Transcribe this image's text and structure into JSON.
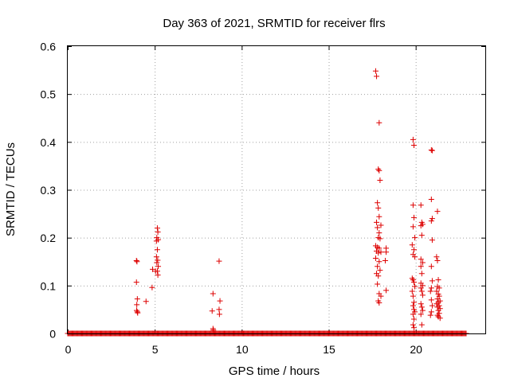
{
  "chart_data": {
    "type": "scatter",
    "title": "Day 363 of 2021, SRMTID for receiver flrs",
    "xlabel": "GPS time / hours",
    "ylabel": "SRMTID / TECUs",
    "xlim": [
      0,
      24
    ],
    "ylim": [
      0,
      0.6
    ],
    "xticks": [
      0,
      5,
      10,
      15,
      20
    ],
    "xtick_labels": [
      "0",
      "5",
      "10",
      "15",
      "20"
    ],
    "yticks": [
      0,
      0.1,
      0.2,
      0.3,
      0.4,
      0.5,
      0.6
    ],
    "ytick_labels": [
      "0",
      "0.1",
      "0.2",
      "0.3",
      "0.4",
      "0.5",
      "0.6"
    ],
    "grid": true,
    "marker": "+",
    "series": [
      {
        "name": "flrs",
        "color": "#dd0000",
        "baseline": {
          "y": 0,
          "x_from": 0,
          "x_to": 22.9,
          "step": 0.05
        },
        "points": [
          [
            3.95,
            0.152
          ],
          [
            3.98,
            0.15
          ],
          [
            3.95,
            0.107
          ],
          [
            4.0,
            0.072
          ],
          [
            3.97,
            0.06
          ],
          [
            4.0,
            0.045
          ],
          [
            3.96,
            0.048
          ],
          [
            4.02,
            0.043
          ],
          [
            4.5,
            0.067
          ],
          [
            4.85,
            0.096
          ],
          [
            4.88,
            0.134
          ],
          [
            5.05,
            0.13
          ],
          [
            5.15,
            0.22
          ],
          [
            5.18,
            0.212
          ],
          [
            5.12,
            0.2
          ],
          [
            5.2,
            0.196
          ],
          [
            5.1,
            0.193
          ],
          [
            5.15,
            0.175
          ],
          [
            5.1,
            0.16
          ],
          [
            5.17,
            0.153
          ],
          [
            5.12,
            0.148
          ],
          [
            5.2,
            0.14
          ],
          [
            5.15,
            0.13
          ],
          [
            5.18,
            0.122
          ],
          [
            8.35,
            0.083
          ],
          [
            8.3,
            0.047
          ],
          [
            8.35,
            0.01
          ],
          [
            8.37,
            0.007
          ],
          [
            8.7,
            0.151
          ],
          [
            8.75,
            0.068
          ],
          [
            8.7,
            0.05
          ],
          [
            8.72,
            0.04
          ],
          [
            17.7,
            0.548
          ],
          [
            17.75,
            0.537
          ],
          [
            17.9,
            0.44
          ],
          [
            17.85,
            0.343
          ],
          [
            17.9,
            0.34
          ],
          [
            17.95,
            0.32
          ],
          [
            17.8,
            0.273
          ],
          [
            17.85,
            0.262
          ],
          [
            17.9,
            0.244
          ],
          [
            17.75,
            0.232
          ],
          [
            17.8,
            0.221
          ],
          [
            18.0,
            0.226
          ],
          [
            17.9,
            0.21
          ],
          [
            17.85,
            0.2
          ],
          [
            17.95,
            0.198
          ],
          [
            17.7,
            0.183
          ],
          [
            17.8,
            0.18
          ],
          [
            17.9,
            0.178
          ],
          [
            17.75,
            0.172
          ],
          [
            17.85,
            0.168
          ],
          [
            18.0,
            0.17
          ],
          [
            17.7,
            0.157
          ],
          [
            17.9,
            0.15
          ],
          [
            17.8,
            0.14
          ],
          [
            17.95,
            0.132
          ],
          [
            17.75,
            0.125
          ],
          [
            17.85,
            0.12
          ],
          [
            17.8,
            0.103
          ],
          [
            17.9,
            0.083
          ],
          [
            18.0,
            0.078
          ],
          [
            17.85,
            0.068
          ],
          [
            17.9,
            0.064
          ],
          [
            18.3,
            0.178
          ],
          [
            18.3,
            0.17
          ],
          [
            18.25,
            0.152
          ],
          [
            18.3,
            0.09
          ],
          [
            19.85,
            0.405
          ],
          [
            19.9,
            0.393
          ],
          [
            19.85,
            0.268
          ],
          [
            19.9,
            0.242
          ],
          [
            19.85,
            0.223
          ],
          [
            19.95,
            0.2
          ],
          [
            19.8,
            0.185
          ],
          [
            19.9,
            0.175
          ],
          [
            19.85,
            0.165
          ],
          [
            19.95,
            0.16
          ],
          [
            19.8,
            0.115
          ],
          [
            19.85,
            0.112
          ],
          [
            19.9,
            0.107
          ],
          [
            19.95,
            0.098
          ],
          [
            19.8,
            0.088
          ],
          [
            19.85,
            0.078
          ],
          [
            19.9,
            0.065
          ],
          [
            19.85,
            0.058
          ],
          [
            19.9,
            0.05
          ],
          [
            19.95,
            0.045
          ],
          [
            19.85,
            0.04
          ],
          [
            19.9,
            0.03
          ],
          [
            19.85,
            0.018
          ],
          [
            19.9,
            0.012
          ],
          [
            20.3,
            0.268
          ],
          [
            20.35,
            0.232
          ],
          [
            20.4,
            0.228
          ],
          [
            20.3,
            0.225
          ],
          [
            20.35,
            0.205
          ],
          [
            20.3,
            0.155
          ],
          [
            20.4,
            0.148
          ],
          [
            20.3,
            0.14
          ],
          [
            20.35,
            0.125
          ],
          [
            20.3,
            0.105
          ],
          [
            20.4,
            0.1
          ],
          [
            20.3,
            0.095
          ],
          [
            20.35,
            0.088
          ],
          [
            20.4,
            0.08
          ],
          [
            20.3,
            0.062
          ],
          [
            20.35,
            0.055
          ],
          [
            20.4,
            0.048
          ],
          [
            20.3,
            0.04
          ],
          [
            20.35,
            0.018
          ],
          [
            20.9,
            0.383
          ],
          [
            20.95,
            0.382
          ],
          [
            20.9,
            0.28
          ],
          [
            20.95,
            0.24
          ],
          [
            20.9,
            0.235
          ],
          [
            20.95,
            0.195
          ],
          [
            20.9,
            0.14
          ],
          [
            20.95,
            0.11
          ],
          [
            20.9,
            0.095
          ],
          [
            20.85,
            0.088
          ],
          [
            20.9,
            0.07
          ],
          [
            20.95,
            0.058
          ],
          [
            20.9,
            0.045
          ],
          [
            20.85,
            0.038
          ],
          [
            21.25,
            0.255
          ],
          [
            21.2,
            0.16
          ],
          [
            21.25,
            0.152
          ],
          [
            21.3,
            0.112
          ],
          [
            21.25,
            0.098
          ],
          [
            21.35,
            0.095
          ],
          [
            21.2,
            0.088
          ],
          [
            21.3,
            0.082
          ],
          [
            21.35,
            0.078
          ],
          [
            21.25,
            0.072
          ],
          [
            21.4,
            0.068
          ],
          [
            21.3,
            0.065
          ],
          [
            21.2,
            0.062
          ],
          [
            21.35,
            0.058
          ],
          [
            21.25,
            0.055
          ],
          [
            21.4,
            0.052
          ],
          [
            21.3,
            0.048
          ],
          [
            21.35,
            0.042
          ],
          [
            21.25,
            0.038
          ],
          [
            21.3,
            0.035
          ],
          [
            21.4,
            0.032
          ]
        ]
      }
    ]
  }
}
